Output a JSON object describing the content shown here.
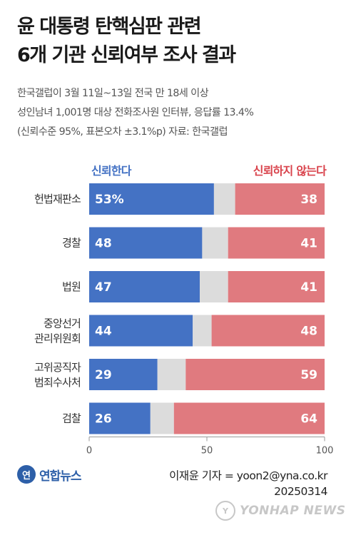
{
  "title_line1": "윤 대통령 탄핵심판 관련",
  "title_line2": "6개 기관 신뢰여부 조사 결과",
  "subtitle_line1": "한국갤럽이 3월 11일~13일 전국 만 18세 이상",
  "subtitle_line2": "성인남녀 1,001명 대상 전화조사원 인터뷰, 응답률 13.4%",
  "subtitle_line3": "(신뢰수준 95%, 표본오차 ±3.1%p) 자료: 한국갤럽",
  "legend_trust": "신뢰한다",
  "legend_distrust": "신뢰하지 않는다",
  "colors": {
    "trust": "#4472c4",
    "neutral": "#dcdcdc",
    "distrust": "#e07a7f"
  },
  "chart_data": {
    "type": "bar",
    "orientation": "horizontal-stacked",
    "categories": [
      [
        "헌법재판소"
      ],
      [
        "경찰"
      ],
      [
        "법원"
      ],
      [
        "중앙선거",
        "관리위원회"
      ],
      [
        "고위공직자",
        "범죄수사처"
      ],
      [
        "검찰"
      ]
    ],
    "series": [
      {
        "name": "신뢰한다",
        "values": [
          53,
          48,
          47,
          44,
          29,
          26
        ],
        "labels": [
          "53%",
          "48",
          "47",
          "44",
          "29",
          "26"
        ]
      },
      {
        "values": [
          9,
          11,
          12,
          8,
          12,
          10
        ]
      },
      {
        "name": "신뢰하지 않는다",
        "values": [
          38,
          41,
          41,
          48,
          59,
          64
        ],
        "labels": [
          "38",
          "41",
          "41",
          "48",
          "59",
          "64"
        ]
      }
    ],
    "xlim": [
      0,
      100
    ],
    "xticks": [
      "0",
      "50",
      "100"
    ]
  },
  "footer": {
    "logo_mark": "연",
    "logo_text": "연합뉴스",
    "credit_line1": "이재윤 기자 = yoon2@yna.co.kr",
    "credit_line2": "20250314",
    "watermark_mark": "Y",
    "watermark": "YONHAP NEWS"
  }
}
